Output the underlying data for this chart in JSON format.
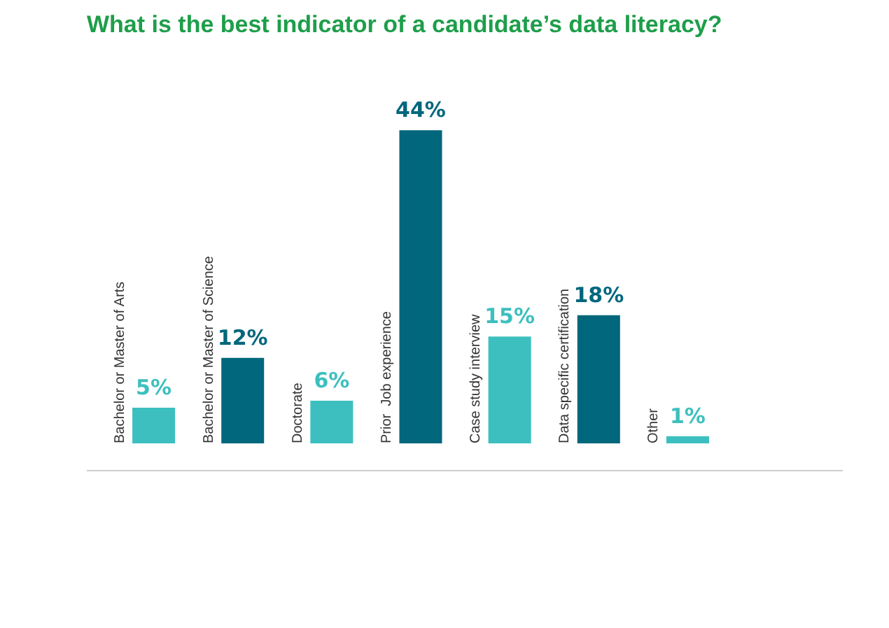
{
  "chart_data": {
    "type": "bar",
    "title": "What is the best indicator of a candidate’s data literacy?",
    "categories": [
      "Bachelor or Master of Arts",
      "Bachelor or Master of Science",
      "Doctorate",
      "Prior  Job experience",
      "Case study interview",
      "Data specific certification",
      "Other"
    ],
    "values": [
      5,
      12,
      6,
      44,
      15,
      18,
      1
    ],
    "colors": [
      "#3dbfbf",
      "#00677c",
      "#3dbfbf",
      "#00677c",
      "#3dbfbf",
      "#00677c",
      "#3dbfbf"
    ],
    "value_labels": [
      "5%",
      "12%",
      "6%",
      "44%",
      "15%",
      "18%",
      "1%"
    ],
    "legend": false
  }
}
